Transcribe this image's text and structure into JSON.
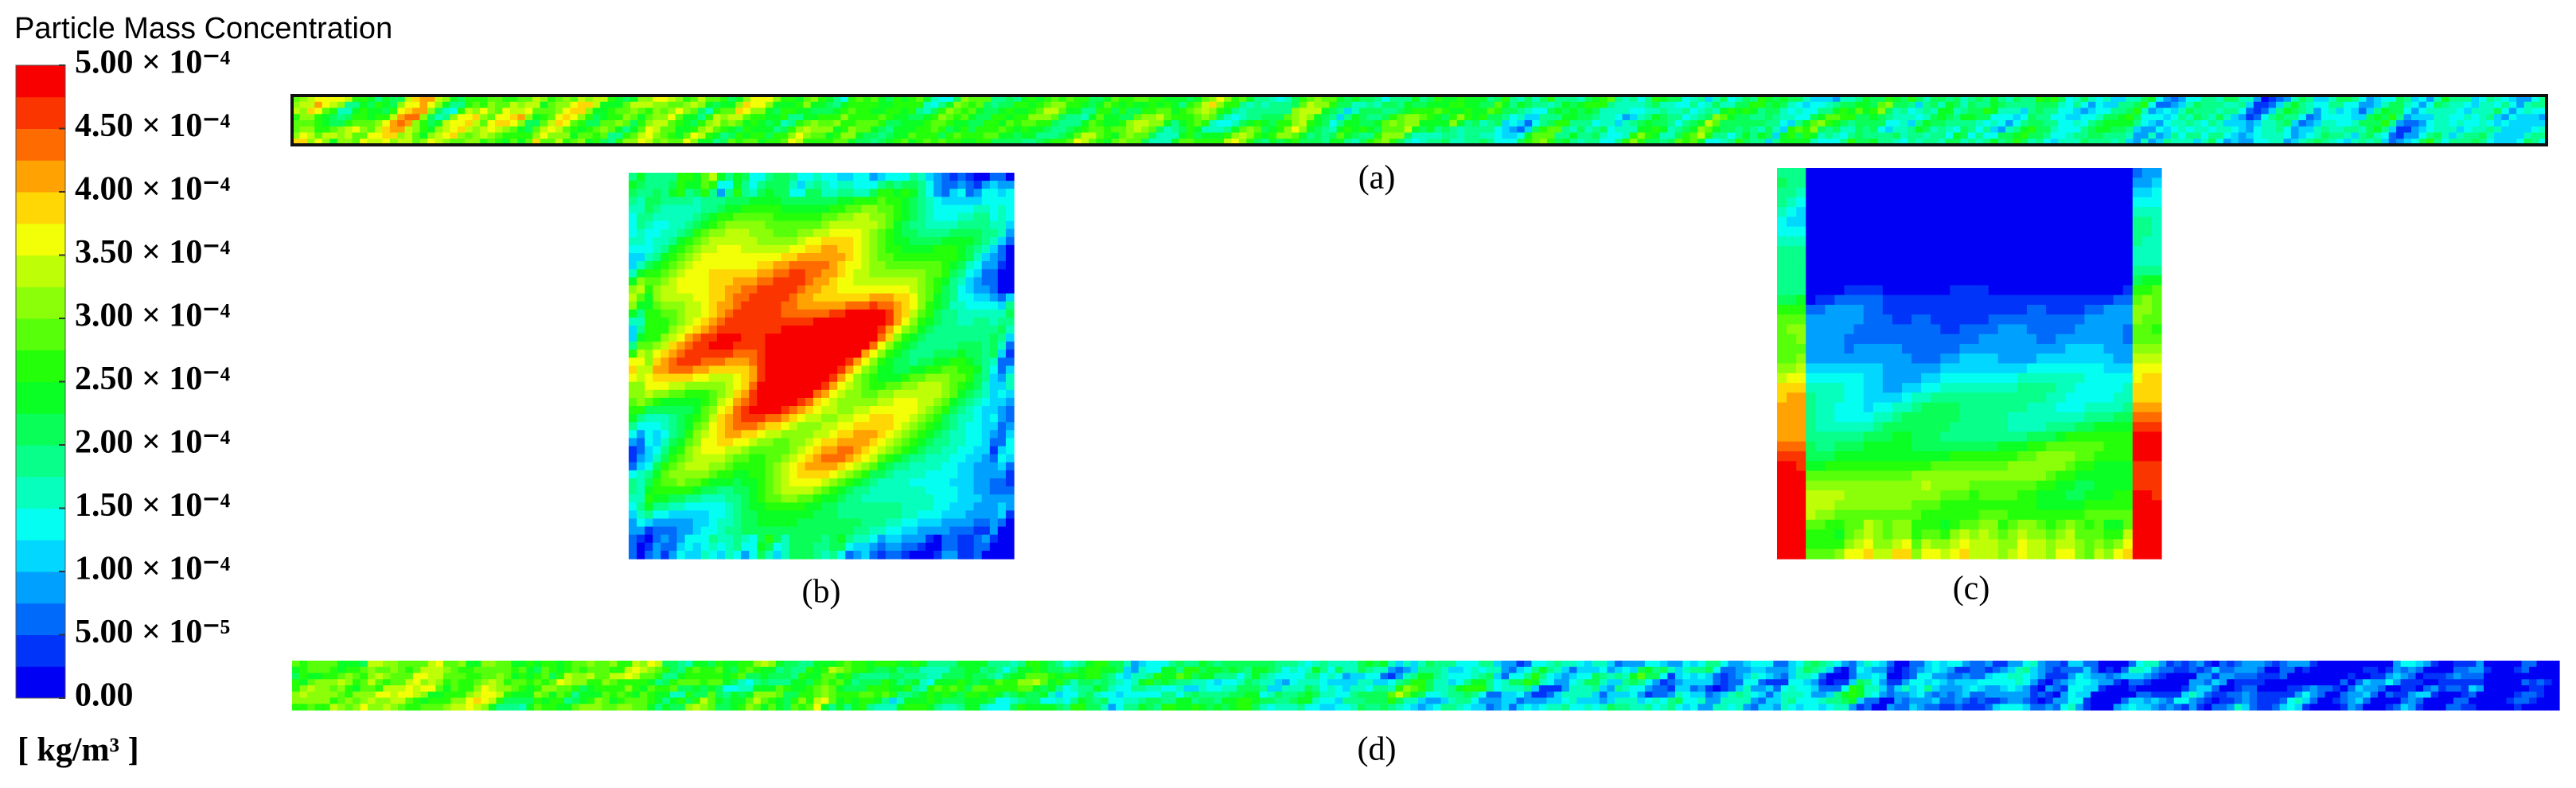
{
  "legend": {
    "title": "Particle Mass Concentration",
    "ticks": [
      {
        "value": 0.0005,
        "label": "5.00 × 10⁻⁴"
      },
      {
        "value": 0.00045,
        "label": "4.50 × 10⁻⁴"
      },
      {
        "value": 0.0004,
        "label": "4.00 × 10⁻⁴"
      },
      {
        "value": 0.00035,
        "label": "3.50 × 10⁻⁴"
      },
      {
        "value": 0.0003,
        "label": "3.00 × 10⁻⁴"
      },
      {
        "value": 0.00025,
        "label": "2.50 × 10⁻⁴"
      },
      {
        "value": 0.0002,
        "label": "2.00 × 10⁻⁴"
      },
      {
        "value": 0.00015,
        "label": "1.50 × 10⁻⁴"
      },
      {
        "value": 0.0001,
        "label": "1.00 × 10⁻⁴"
      },
      {
        "value": 5e-05,
        "label": "5.00 × 10⁻⁵"
      },
      {
        "value": 0,
        "label": "0.00"
      }
    ],
    "unit": "[ kg/m³ ]"
  },
  "panels": [
    {
      "label": "(a)"
    },
    {
      "label": "(b)"
    },
    {
      "label": "(c)"
    },
    {
      "label": "(d)"
    }
  ]
}
